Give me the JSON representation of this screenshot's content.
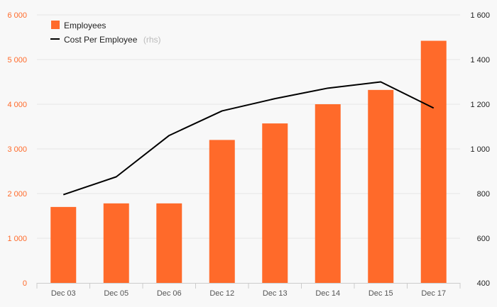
{
  "chart_data": {
    "type": "bar",
    "categories": [
      "Dec 03",
      "Dec 05",
      "Dec 06",
      "Dec 12",
      "Dec 13",
      "Dec 14",
      "Dec 15",
      "Dec 17"
    ],
    "series": [
      {
        "name": "Employees",
        "type": "bar",
        "axis": "left",
        "color": "#ff6a2a",
        "values": [
          1700,
          1780,
          1780,
          3200,
          3570,
          4000,
          4320,
          5420
        ]
      },
      {
        "name": "Cost Per Employee",
        "legend_suffix": "(rhs)",
        "type": "line",
        "axis": "right",
        "color": "#000000",
        "values": [
          795,
          875,
          1060,
          1170,
          1225,
          1272,
          1300,
          1183
        ]
      }
    ],
    "y_left": {
      "ylim": [
        0,
        6000
      ],
      "ticks": [
        0,
        1000,
        2000,
        3000,
        4000,
        5000,
        6000
      ],
      "tick_labels": [
        "0",
        "1 000",
        "2 000",
        "3 000",
        "4 000",
        "5 000",
        "6 000"
      ],
      "color": "#ff6a2a"
    },
    "y_right": {
      "ylim": [
        400,
        1600
      ],
      "ticks": [
        400,
        600,
        800,
        1000,
        1200,
        1400,
        1600
      ],
      "tick_labels": [
        "400",
        "600",
        "800",
        "1 000",
        "1 200",
        "1 400",
        "1 600"
      ],
      "color": "#222222"
    },
    "grid": true,
    "legend_position": "top-left",
    "title": "",
    "xlabel": "",
    "ylabel": ""
  }
}
